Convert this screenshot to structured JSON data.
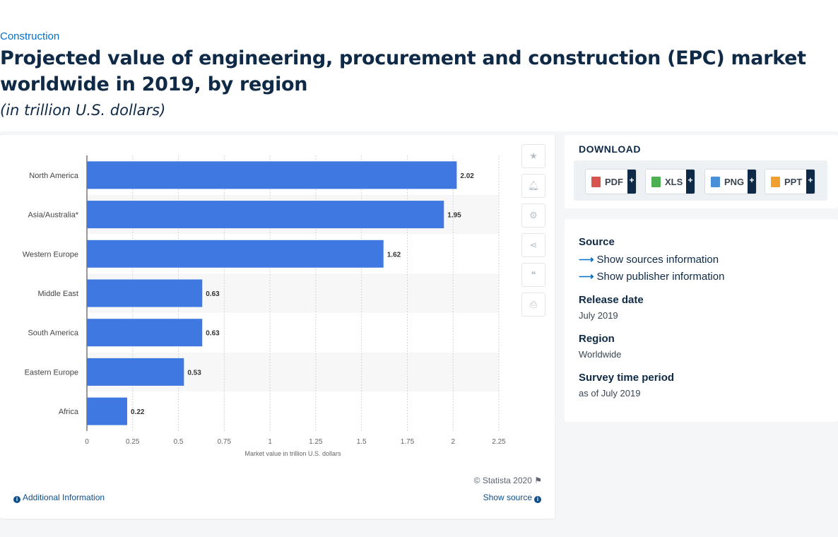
{
  "breadcrumb": "Construction",
  "title": "Projected value of engineering, procurement and construction (EPC) market worldwide in 2019, by region",
  "subtitle": "(in trillion U.S. dollars)",
  "chart_data": {
    "type": "bar",
    "orientation": "horizontal",
    "categories": [
      "North America",
      "Asia/Australia*",
      "Western Europe",
      "Middle East",
      "South America",
      "Eastern Europe",
      "Africa"
    ],
    "values": [
      2.02,
      1.95,
      1.62,
      0.63,
      0.63,
      0.53,
      0.22
    ],
    "value_labels": [
      "2.02",
      "1.95",
      "1.62",
      "0.63",
      "0.63",
      "0.53",
      "0.22"
    ],
    "xlabel": "Market value in trillion U.S. dollars",
    "ylabel": "",
    "xlim": [
      0,
      2.25
    ],
    "xticks": [
      0,
      0.25,
      0.5,
      0.75,
      1,
      1.25,
      1.5,
      1.75,
      2,
      2.25
    ],
    "xtick_labels": [
      "0",
      "0.25",
      "0.5",
      "0.75",
      "1",
      "1.25",
      "1.5",
      "1.75",
      "2",
      "2.25"
    ],
    "grid": true,
    "bar_color": "#3f78e0",
    "alt_row_color": "#f7f7f7"
  },
  "toolbar": {
    "icons": [
      "star-icon",
      "bell-icon",
      "gear-icon",
      "share-icon",
      "quote-icon",
      "print-icon"
    ]
  },
  "footer": {
    "copyright": "© Statista 2020",
    "additional_info": "Additional Information",
    "show_source": "Show source"
  },
  "download": {
    "title": "DOWNLOAD",
    "buttons": [
      {
        "label": "PDF",
        "color": "#d9534f"
      },
      {
        "label": "XLS",
        "color": "#4caf50"
      },
      {
        "label": "PNG",
        "color": "#4a90d9"
      },
      {
        "label": "PPT",
        "color": "#f0a030"
      }
    ],
    "plus": "+"
  },
  "info": {
    "source_heading": "Source",
    "show_sources": "Show sources information",
    "show_publisher": "Show publisher information",
    "release_heading": "Release date",
    "release_value": "July 2019",
    "region_heading": "Region",
    "region_value": "Worldwide",
    "survey_heading": "Survey time period",
    "survey_value": "as of July 2019"
  }
}
